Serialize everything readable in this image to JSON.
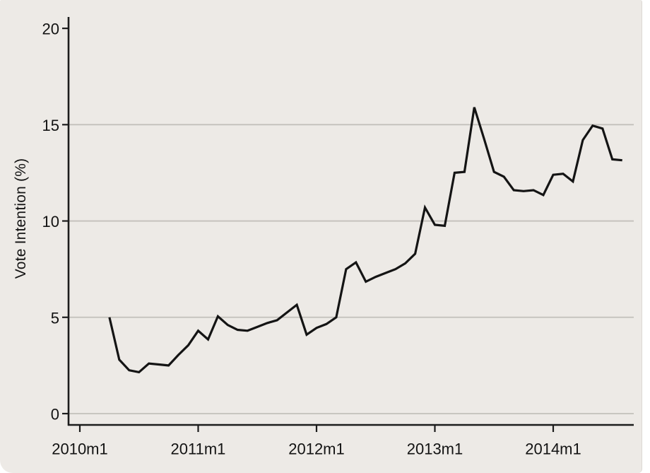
{
  "figure": {
    "background_color": "#edeae6",
    "grid_color": "#c3c0bb",
    "axis_color": "#1c1c1c",
    "line_color": "#141414",
    "text_color": "#131313"
  },
  "chart_data": {
    "type": "line",
    "title": "",
    "xlabel": "",
    "ylabel": "Vote Intention (%)",
    "x_tick_labels": [
      "2010m1",
      "2011m1",
      "2012m1",
      "2013m1",
      "2014m1"
    ],
    "y_ticks": [
      0,
      5,
      10,
      15,
      20
    ],
    "grid_ticks": [
      0,
      5,
      10,
      15
    ],
    "ylim": [
      0,
      20
    ],
    "xlim": [
      "2010m1",
      "2014m9"
    ],
    "grid": "horizontal",
    "legend": "none",
    "series": [
      {
        "name": "Vote Intention (%)",
        "x": [
          "2010m4",
          "2010m5",
          "2010m6",
          "2010m7",
          "2010m8",
          "2010m9",
          "2010m10",
          "2010m11",
          "2010m12",
          "2011m1",
          "2011m2",
          "2011m3",
          "2011m4",
          "2011m5",
          "2011m6",
          "2011m7",
          "2011m8",
          "2011m9",
          "2011m10",
          "2011m11",
          "2011m12",
          "2012m1",
          "2012m2",
          "2012m3",
          "2012m4",
          "2012m5",
          "2012m6",
          "2012m7",
          "2012m8",
          "2012m9",
          "2012m10",
          "2012m11",
          "2012m12",
          "2013m1",
          "2013m2",
          "2013m3",
          "2013m4",
          "2013m5",
          "2013m6",
          "2013m7",
          "2013m8",
          "2013m9",
          "2013m10",
          "2013m11",
          "2013m12",
          "2014m1",
          "2014m2",
          "2014m3",
          "2014m4",
          "2014m5",
          "2014m6",
          "2014m7",
          "2014m8"
        ],
        "y": [
          5.0,
          2.8,
          2.25,
          2.15,
          2.6,
          2.55,
          2.5,
          3.05,
          3.55,
          4.3,
          3.85,
          5.05,
          4.6,
          4.35,
          4.3,
          4.5,
          4.7,
          4.85,
          5.25,
          5.65,
          4.1,
          4.45,
          4.65,
          5.0,
          7.5,
          7.85,
          6.85,
          7.1,
          7.3,
          7.5,
          7.8,
          8.3,
          10.7,
          9.8,
          9.75,
          12.5,
          12.55,
          15.9,
          14.25,
          12.55,
          12.3,
          11.6,
          11.55,
          11.6,
          11.35,
          12.4,
          12.45,
          12.05,
          14.2,
          14.95,
          14.8,
          13.2,
          13.15
        ]
      }
    ]
  }
}
